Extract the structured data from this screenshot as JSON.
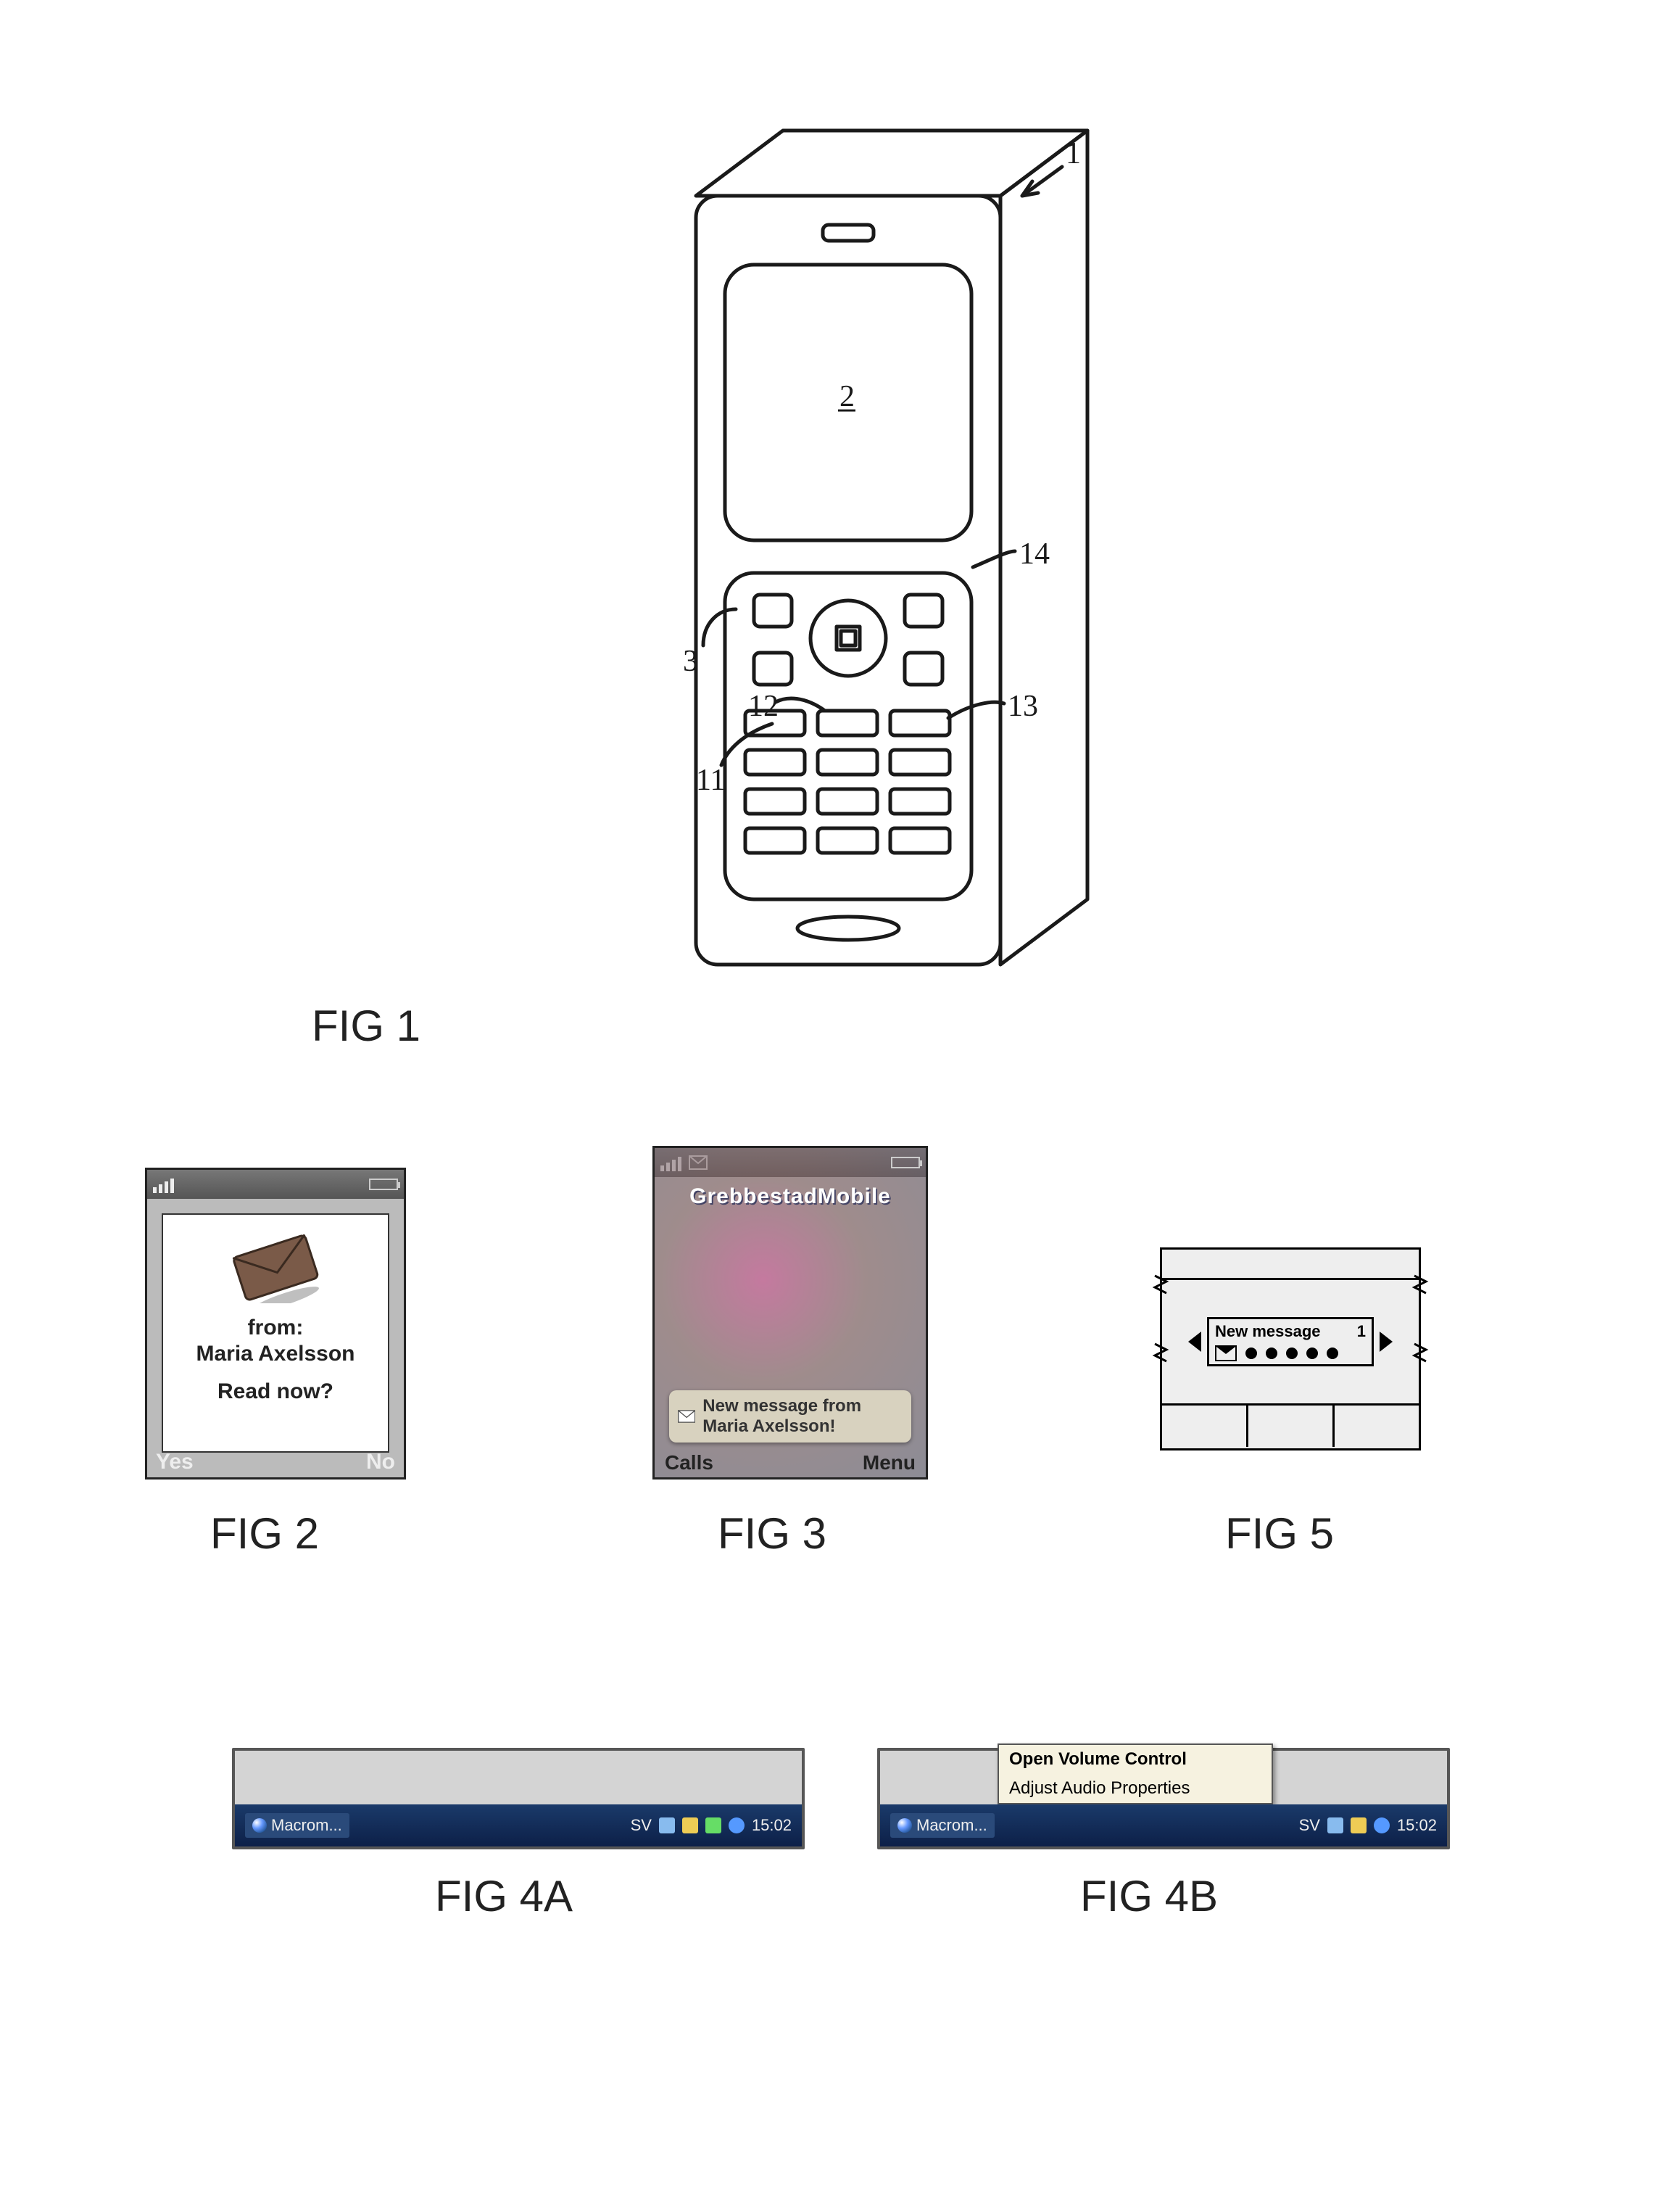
{
  "fig_labels": {
    "fig1": "FIG 1",
    "fig2": "FIG 2",
    "fig3": "FIG 3",
    "fig4a": "FIG 4A",
    "fig4b": "FIG 4B",
    "fig5": "FIG 5"
  },
  "fig1_phone": {
    "refs": {
      "r1": "1",
      "r2": "2",
      "r3": "3",
      "r11": "11",
      "r12": "12",
      "r13": "13",
      "r14": "14"
    },
    "stroke": "#1a1a1a",
    "stroke_width": 5,
    "fill": "#ffffff"
  },
  "fig2": {
    "from_label": "from:",
    "sender": "Maria Axelsson",
    "prompt": "Read now?",
    "softkey_left": "Yes",
    "softkey_right": "No",
    "colors": {
      "popup_bg": "#ffffff",
      "text": "#222222",
      "bar": "#666666"
    }
  },
  "fig3": {
    "carrier": "GrebbestadMobile",
    "toast_text": "New message from Maria Axelsson!",
    "softkey_left": "Calls",
    "softkey_right": "Menu"
  },
  "fig4a": {
    "task_label": "Macrom...",
    "lang": "SV",
    "clock": "15:02"
  },
  "fig4b": {
    "task_label": "Macrom...",
    "lang": "SV",
    "clock": "15:02",
    "menu_item_1": "Open Volume Control",
    "menu_item_2": "Adjust Audio Properties"
  },
  "fig5": {
    "ticker_title": "New message",
    "ticker_count": "1",
    "dot_count": 5
  }
}
